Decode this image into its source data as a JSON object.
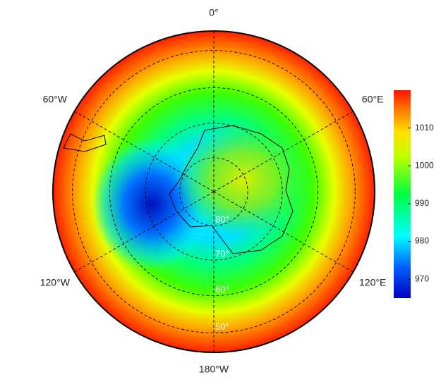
{
  "map": {
    "meridians": [
      {
        "value": 0,
        "label": "0°"
      },
      {
        "value": 60,
        "label": "60°E"
      },
      {
        "value": 120,
        "label": "120°E"
      },
      {
        "value": 180,
        "label": "180°W"
      },
      {
        "value": -120,
        "label": "120°W"
      },
      {
        "value": -60,
        "label": "60°W"
      }
    ],
    "latitudes": [
      {
        "value": 80,
        "label": "80°"
      },
      {
        "value": 70,
        "label": "70°"
      },
      {
        "value": 60,
        "label": "60°"
      },
      {
        "value": 50,
        "label": "50°"
      }
    ],
    "colorbar": {
      "lim": [
        965,
        1020
      ],
      "ticks": [
        970,
        980,
        990,
        1000,
        1010
      ]
    }
  }
}
